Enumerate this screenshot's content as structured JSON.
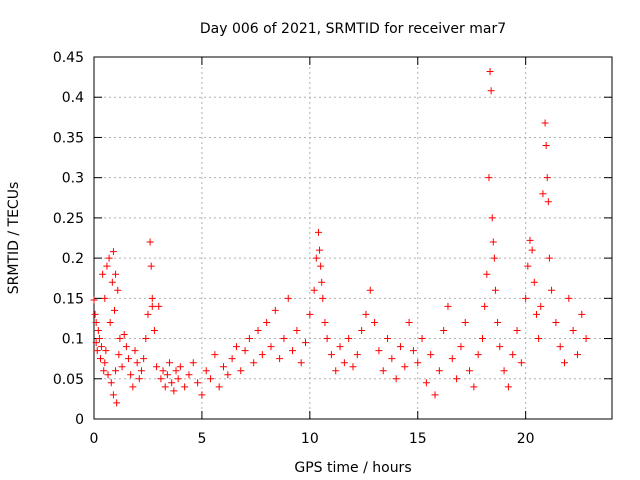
{
  "chart_data": {
    "type": "scatter",
    "title": "Day 006 of 2021, SRMTID for receiver mar7",
    "xlabel": "GPS time / hours",
    "ylabel": "SRMTID / TECUs",
    "xlim": [
      0,
      24
    ],
    "ylim": [
      0,
      0.45
    ],
    "x_ticks": [
      0,
      5,
      10,
      15,
      20
    ],
    "x_tick_labels": [
      "0",
      "5",
      "10",
      "15",
      "20"
    ],
    "y_ticks": [
      0,
      0.05,
      0.1,
      0.15,
      0.2,
      0.25,
      0.3,
      0.35,
      0.4,
      0.45
    ],
    "y_tick_labels": [
      "0",
      "0.05",
      "0.1",
      "0.15",
      "0.2",
      "0.25",
      "0.3",
      "0.35",
      "0.4",
      "0.45"
    ],
    "grid": true,
    "marker": "plus",
    "color": "#ff0000",
    "points": [
      [
        0.0,
        0.148
      ],
      [
        0.05,
        0.13
      ],
      [
        0.1,
        0.12
      ],
      [
        0.1,
        0.095
      ],
      [
        0.15,
        0.085
      ],
      [
        0.2,
        0.11
      ],
      [
        0.25,
        0.1
      ],
      [
        0.3,
        0.075
      ],
      [
        0.35,
        0.09
      ],
      [
        0.4,
        0.18
      ],
      [
        0.45,
        0.06
      ],
      [
        0.5,
        0.15
      ],
      [
        0.5,
        0.07
      ],
      [
        0.55,
        0.085
      ],
      [
        0.6,
        0.19
      ],
      [
        0.65,
        0.055
      ],
      [
        0.7,
        0.2
      ],
      [
        0.75,
        0.12
      ],
      [
        0.8,
        0.045
      ],
      [
        0.85,
        0.17
      ],
      [
        0.9,
        0.208
      ],
      [
        0.9,
        0.03
      ],
      [
        0.95,
        0.135
      ],
      [
        1.0,
        0.18
      ],
      [
        1.0,
        0.06
      ],
      [
        1.05,
        0.02
      ],
      [
        1.1,
        0.16
      ],
      [
        1.15,
        0.08
      ],
      [
        1.2,
        0.1
      ],
      [
        1.3,
        0.065
      ],
      [
        1.4,
        0.105
      ],
      [
        1.5,
        0.09
      ],
      [
        1.6,
        0.075
      ],
      [
        1.7,
        0.055
      ],
      [
        1.8,
        0.04
      ],
      [
        1.9,
        0.085
      ],
      [
        2.0,
        0.07
      ],
      [
        2.1,
        0.05
      ],
      [
        2.2,
        0.06
      ],
      [
        2.3,
        0.075
      ],
      [
        2.4,
        0.1
      ],
      [
        2.5,
        0.13
      ],
      [
        2.6,
        0.22
      ],
      [
        2.65,
        0.19
      ],
      [
        2.7,
        0.15
      ],
      [
        2.7,
        0.14
      ],
      [
        2.8,
        0.11
      ],
      [
        2.9,
        0.065
      ],
      [
        3.0,
        0.14
      ],
      [
        3.1,
        0.05
      ],
      [
        3.2,
        0.06
      ],
      [
        3.3,
        0.04
      ],
      [
        3.4,
        0.055
      ],
      [
        3.5,
        0.07
      ],
      [
        3.6,
        0.045
      ],
      [
        3.7,
        0.035
      ],
      [
        3.8,
        0.06
      ],
      [
        3.9,
        0.05
      ],
      [
        4.0,
        0.065
      ],
      [
        4.2,
        0.04
      ],
      [
        4.4,
        0.055
      ],
      [
        4.6,
        0.07
      ],
      [
        4.8,
        0.045
      ],
      [
        5.0,
        0.03
      ],
      [
        5.2,
        0.06
      ],
      [
        5.4,
        0.05
      ],
      [
        5.6,
        0.08
      ],
      [
        5.8,
        0.04
      ],
      [
        6.0,
        0.065
      ],
      [
        6.2,
        0.055
      ],
      [
        6.4,
        0.075
      ],
      [
        6.6,
        0.09
      ],
      [
        6.8,
        0.06
      ],
      [
        7.0,
        0.085
      ],
      [
        7.2,
        0.1
      ],
      [
        7.4,
        0.07
      ],
      [
        7.6,
        0.11
      ],
      [
        7.8,
        0.08
      ],
      [
        8.0,
        0.12
      ],
      [
        8.2,
        0.09
      ],
      [
        8.4,
        0.135
      ],
      [
        8.6,
        0.075
      ],
      [
        8.8,
        0.1
      ],
      [
        9.0,
        0.15
      ],
      [
        9.2,
        0.085
      ],
      [
        9.4,
        0.11
      ],
      [
        9.6,
        0.07
      ],
      [
        9.8,
        0.095
      ],
      [
        10.0,
        0.13
      ],
      [
        10.2,
        0.16
      ],
      [
        10.3,
        0.2
      ],
      [
        10.4,
        0.232
      ],
      [
        10.45,
        0.21
      ],
      [
        10.5,
        0.19
      ],
      [
        10.55,
        0.17
      ],
      [
        10.6,
        0.15
      ],
      [
        10.7,
        0.12
      ],
      [
        10.8,
        0.1
      ],
      [
        11.0,
        0.08
      ],
      [
        11.2,
        0.06
      ],
      [
        11.4,
        0.09
      ],
      [
        11.6,
        0.07
      ],
      [
        11.8,
        0.1
      ],
      [
        12.0,
        0.065
      ],
      [
        12.2,
        0.08
      ],
      [
        12.4,
        0.11
      ],
      [
        12.6,
        0.13
      ],
      [
        12.8,
        0.16
      ],
      [
        13.0,
        0.12
      ],
      [
        13.2,
        0.085
      ],
      [
        13.4,
        0.06
      ],
      [
        13.6,
        0.1
      ],
      [
        13.8,
        0.075
      ],
      [
        14.0,
        0.05
      ],
      [
        14.2,
        0.09
      ],
      [
        14.4,
        0.065
      ],
      [
        14.6,
        0.12
      ],
      [
        14.8,
        0.085
      ],
      [
        15.0,
        0.07
      ],
      [
        15.2,
        0.1
      ],
      [
        15.4,
        0.045
      ],
      [
        15.6,
        0.08
      ],
      [
        15.8,
        0.03
      ],
      [
        16.0,
        0.06
      ],
      [
        16.2,
        0.11
      ],
      [
        16.4,
        0.14
      ],
      [
        16.6,
        0.075
      ],
      [
        16.8,
        0.05
      ],
      [
        17.0,
        0.09
      ],
      [
        17.2,
        0.12
      ],
      [
        17.4,
        0.06
      ],
      [
        17.6,
        0.04
      ],
      [
        17.8,
        0.08
      ],
      [
        18.0,
        0.1
      ],
      [
        18.1,
        0.14
      ],
      [
        18.2,
        0.18
      ],
      [
        18.3,
        0.3
      ],
      [
        18.35,
        0.432
      ],
      [
        18.4,
        0.408
      ],
      [
        18.45,
        0.25
      ],
      [
        18.5,
        0.22
      ],
      [
        18.55,
        0.2
      ],
      [
        18.6,
        0.16
      ],
      [
        18.7,
        0.12
      ],
      [
        18.8,
        0.09
      ],
      [
        19.0,
        0.06
      ],
      [
        19.2,
        0.04
      ],
      [
        19.4,
        0.08
      ],
      [
        19.6,
        0.11
      ],
      [
        19.8,
        0.07
      ],
      [
        20.0,
        0.15
      ],
      [
        20.1,
        0.19
      ],
      [
        20.2,
        0.222
      ],
      [
        20.3,
        0.21
      ],
      [
        20.4,
        0.17
      ],
      [
        20.5,
        0.13
      ],
      [
        20.6,
        0.1
      ],
      [
        20.7,
        0.14
      ],
      [
        20.8,
        0.28
      ],
      [
        20.9,
        0.368
      ],
      [
        20.95,
        0.34
      ],
      [
        21.0,
        0.3
      ],
      [
        21.05,
        0.27
      ],
      [
        21.1,
        0.2
      ],
      [
        21.2,
        0.16
      ],
      [
        21.4,
        0.12
      ],
      [
        21.6,
        0.09
      ],
      [
        21.8,
        0.07
      ],
      [
        22.0,
        0.15
      ],
      [
        22.2,
        0.11
      ],
      [
        22.4,
        0.08
      ],
      [
        22.6,
        0.13
      ],
      [
        22.8,
        0.1
      ]
    ]
  }
}
